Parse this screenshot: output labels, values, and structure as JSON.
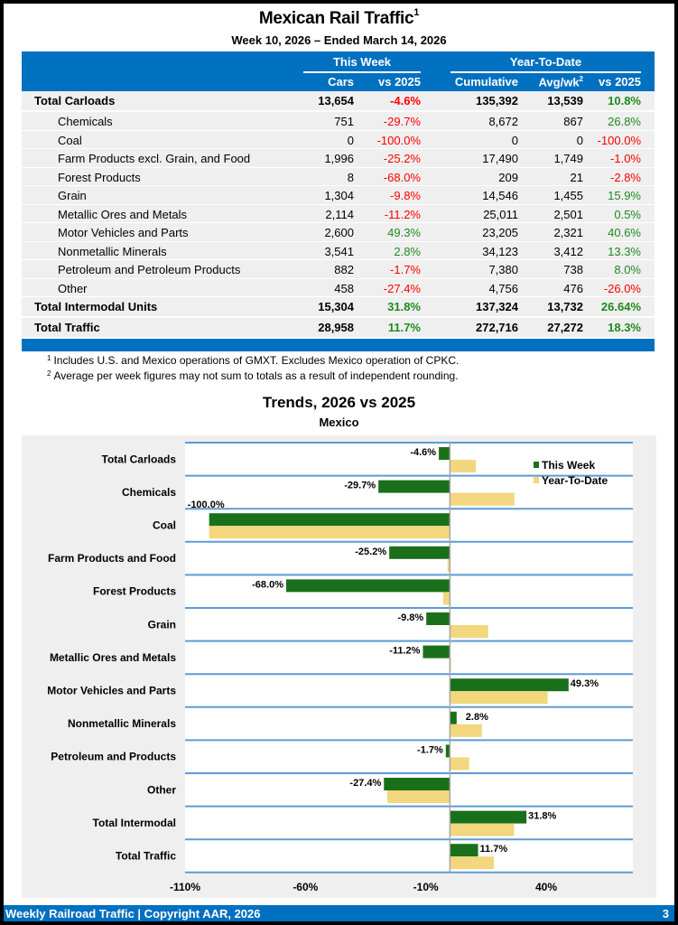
{
  "header": {
    "title": "Mexican Rail Traffic",
    "title_sup": "1",
    "subtitle": "Week 10, 2026 – Ended March 14, 2026"
  },
  "table": {
    "group_headers": {
      "this_week": "This Week",
      "ytd": "Year-To-Date"
    },
    "columns": [
      "Cars",
      "vs 2025",
      "Cumulative",
      "Avg/wk",
      "vs 2025"
    ],
    "avg_sup": "2",
    "rows": [
      {
        "label": "Total Carloads",
        "type": "total",
        "cars": "13,654",
        "vs_week": "-4.6%",
        "cum": "135,392",
        "avg": "13,539",
        "vs_ytd": "10.8%"
      },
      {
        "label": "Chemicals",
        "type": "sub",
        "cars": "751",
        "vs_week": "-29.7%",
        "cum": "8,672",
        "avg": "867",
        "vs_ytd": "26.8%"
      },
      {
        "label": "Coal",
        "type": "sub",
        "cars": "0",
        "vs_week": "-100.0%",
        "cum": "0",
        "avg": "0",
        "vs_ytd": "-100.0%"
      },
      {
        "label": "Farm Products excl. Grain, and Food",
        "type": "sub",
        "cars": "1,996",
        "vs_week": "-25.2%",
        "cum": "17,490",
        "avg": "1,749",
        "vs_ytd": "-1.0%"
      },
      {
        "label": "Forest Products",
        "type": "sub",
        "cars": "8",
        "vs_week": "-68.0%",
        "cum": "209",
        "avg": "21",
        "vs_ytd": "-2.8%"
      },
      {
        "label": "Grain",
        "type": "sub",
        "cars": "1,304",
        "vs_week": "-9.8%",
        "cum": "14,546",
        "avg": "1,455",
        "vs_ytd": "15.9%"
      },
      {
        "label": "Metallic Ores and Metals",
        "type": "sub",
        "cars": "2,114",
        "vs_week": "-11.2%",
        "cum": "25,011",
        "avg": "2,501",
        "vs_ytd": "0.5%"
      },
      {
        "label": "Motor Vehicles and Parts",
        "type": "sub",
        "cars": "2,600",
        "vs_week": "49.3%",
        "cum": "23,205",
        "avg": "2,321",
        "vs_ytd": "40.6%"
      },
      {
        "label": "Nonmetallic Minerals",
        "type": "sub",
        "cars": "3,541",
        "vs_week": "2.8%",
        "cum": "34,123",
        "avg": "3,412",
        "vs_ytd": "13.3%"
      },
      {
        "label": "Petroleum and Petroleum Products",
        "type": "sub",
        "cars": "882",
        "vs_week": "-1.7%",
        "cum": "7,380",
        "avg": "738",
        "vs_ytd": "8.0%"
      },
      {
        "label": "Other",
        "type": "sub",
        "cars": "458",
        "vs_week": "-27.4%",
        "cum": "4,756",
        "avg": "476",
        "vs_ytd": "-26.0%"
      },
      {
        "label": "Total Intermodal Units",
        "type": "total",
        "cars": "15,304",
        "vs_week": "31.8%",
        "cum": "137,324",
        "avg": "13,732",
        "vs_ytd": "26.64%"
      },
      {
        "label": "Total Traffic",
        "type": "total",
        "cars": "28,958",
        "vs_week": "11.7%",
        "cum": "272,716",
        "avg": "27,272",
        "vs_ytd": "18.3%"
      }
    ]
  },
  "footnotes": [
    {
      "sup": "1",
      "text": "Includes U.S. and Mexico operations of GMXT. Excludes Mexico operation of CPKC."
    },
    {
      "sup": "2",
      "text": "Average per week figures may not sum to totals as a result of independent rounding."
    }
  ],
  "colors": {
    "brand_blue": "#0070c0",
    "negative": "#ff0000",
    "positive": "#1f8a1f",
    "this_week_bar": "#1a701a",
    "ytd_bar": "#f2d77e"
  },
  "chart_data": {
    "type": "bar",
    "orientation": "horizontal",
    "title": "Trends, 2026 vs 2025",
    "subtitle": "Mexico",
    "categories": [
      "Total Carloads",
      "Chemicals",
      "Coal",
      "Farm Products and Food",
      "Forest Products",
      "Grain",
      "Metallic Ores and Metals",
      "Motor Vehicles and Parts",
      "Nonmetallic Minerals",
      "Petroleum and Products",
      "Other",
      "Total Intermodal",
      "Total Traffic"
    ],
    "series": [
      {
        "name": "This Week",
        "values": [
          -4.6,
          -29.7,
          -100.0,
          -25.2,
          -68.0,
          -9.8,
          -11.2,
          49.3,
          2.8,
          -1.7,
          -27.4,
          31.8,
          11.7
        ]
      },
      {
        "name": "Year-To-Date",
        "values": [
          10.8,
          26.8,
          -100.0,
          -1.0,
          -2.8,
          15.9,
          0.5,
          40.6,
          13.3,
          8.0,
          -26.0,
          26.64,
          18.3
        ]
      }
    ],
    "data_labels": [
      "-4.6%",
      "-29.7%",
      "-100.0%",
      "-25.2%",
      "-68.0%",
      "-9.8%",
      "-11.2%",
      "49.3%",
      "2.8%",
      "-1.7%",
      "-27.4%",
      "31.8%",
      "11.7%"
    ],
    "x_ticks": [
      "-110%",
      "-60%",
      "-10%",
      "40%"
    ],
    "x_tick_values": [
      -110,
      -60,
      -10,
      40
    ],
    "xlim": [
      -110,
      76
    ],
    "legend": [
      "This Week",
      "Year-To-Date"
    ],
    "legend_position": "top-right",
    "grid": true
  },
  "footer": {
    "left": "Weekly Railroad Traffic | Copyright AAR, 2026",
    "page": "3"
  }
}
